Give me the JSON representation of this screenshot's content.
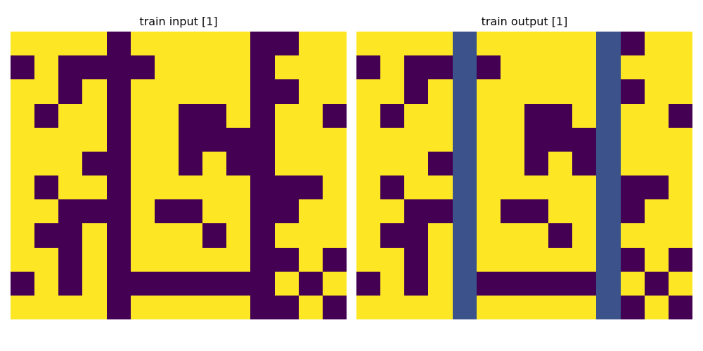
{
  "palette": {
    "0": "#fde725",
    "1": "#440154",
    "2": "#3b528b"
  },
  "panels": [
    {
      "title": "train input [1]",
      "grid": [
        [
          0,
          0,
          0,
          0,
          1,
          0,
          0,
          0,
          0,
          0,
          1,
          1,
          0,
          0
        ],
        [
          1,
          0,
          1,
          1,
          1,
          1,
          0,
          0,
          0,
          0,
          1,
          0,
          0,
          0
        ],
        [
          0,
          0,
          1,
          0,
          1,
          0,
          0,
          0,
          0,
          0,
          1,
          1,
          0,
          0
        ],
        [
          0,
          1,
          0,
          0,
          1,
          0,
          0,
          1,
          1,
          0,
          1,
          0,
          0,
          1
        ],
        [
          0,
          0,
          0,
          0,
          1,
          0,
          0,
          1,
          1,
          1,
          1,
          0,
          0,
          0
        ],
        [
          0,
          0,
          0,
          1,
          1,
          0,
          0,
          1,
          0,
          1,
          1,
          0,
          0,
          0
        ],
        [
          0,
          1,
          0,
          0,
          1,
          0,
          0,
          0,
          0,
          0,
          1,
          1,
          1,
          0
        ],
        [
          0,
          0,
          1,
          1,
          1,
          0,
          1,
          1,
          0,
          0,
          1,
          1,
          0,
          0
        ],
        [
          0,
          1,
          1,
          0,
          1,
          0,
          0,
          0,
          1,
          0,
          1,
          0,
          0,
          0
        ],
        [
          0,
          0,
          1,
          0,
          1,
          0,
          0,
          0,
          0,
          0,
          1,
          1,
          0,
          1
        ],
        [
          1,
          0,
          1,
          0,
          1,
          1,
          1,
          1,
          1,
          1,
          1,
          0,
          1,
          0
        ],
        [
          0,
          0,
          0,
          0,
          1,
          0,
          0,
          0,
          0,
          0,
          1,
          1,
          0,
          1
        ]
      ]
    },
    {
      "title": "train output [1]",
      "grid": [
        [
          0,
          0,
          0,
          0,
          2,
          0,
          0,
          0,
          0,
          0,
          2,
          1,
          0,
          0
        ],
        [
          1,
          0,
          1,
          1,
          2,
          1,
          0,
          0,
          0,
          0,
          2,
          0,
          0,
          0
        ],
        [
          0,
          0,
          1,
          0,
          2,
          0,
          0,
          0,
          0,
          0,
          2,
          1,
          0,
          0
        ],
        [
          0,
          1,
          0,
          0,
          2,
          0,
          0,
          1,
          1,
          0,
          2,
          0,
          0,
          1
        ],
        [
          0,
          0,
          0,
          0,
          2,
          0,
          0,
          1,
          1,
          1,
          2,
          0,
          0,
          0
        ],
        [
          0,
          0,
          0,
          1,
          2,
          0,
          0,
          1,
          0,
          1,
          2,
          0,
          0,
          0
        ],
        [
          0,
          1,
          0,
          0,
          2,
          0,
          0,
          0,
          0,
          0,
          2,
          1,
          1,
          0
        ],
        [
          0,
          0,
          1,
          1,
          2,
          0,
          1,
          1,
          0,
          0,
          2,
          1,
          0,
          0
        ],
        [
          0,
          1,
          1,
          0,
          2,
          0,
          0,
          0,
          1,
          0,
          2,
          0,
          0,
          0
        ],
        [
          0,
          0,
          1,
          0,
          2,
          0,
          0,
          0,
          0,
          0,
          2,
          1,
          0,
          1
        ],
        [
          1,
          0,
          1,
          0,
          2,
          1,
          1,
          1,
          1,
          1,
          2,
          0,
          1,
          0
        ],
        [
          0,
          0,
          0,
          0,
          2,
          0,
          0,
          0,
          0,
          0,
          2,
          1,
          0,
          1
        ]
      ]
    }
  ]
}
